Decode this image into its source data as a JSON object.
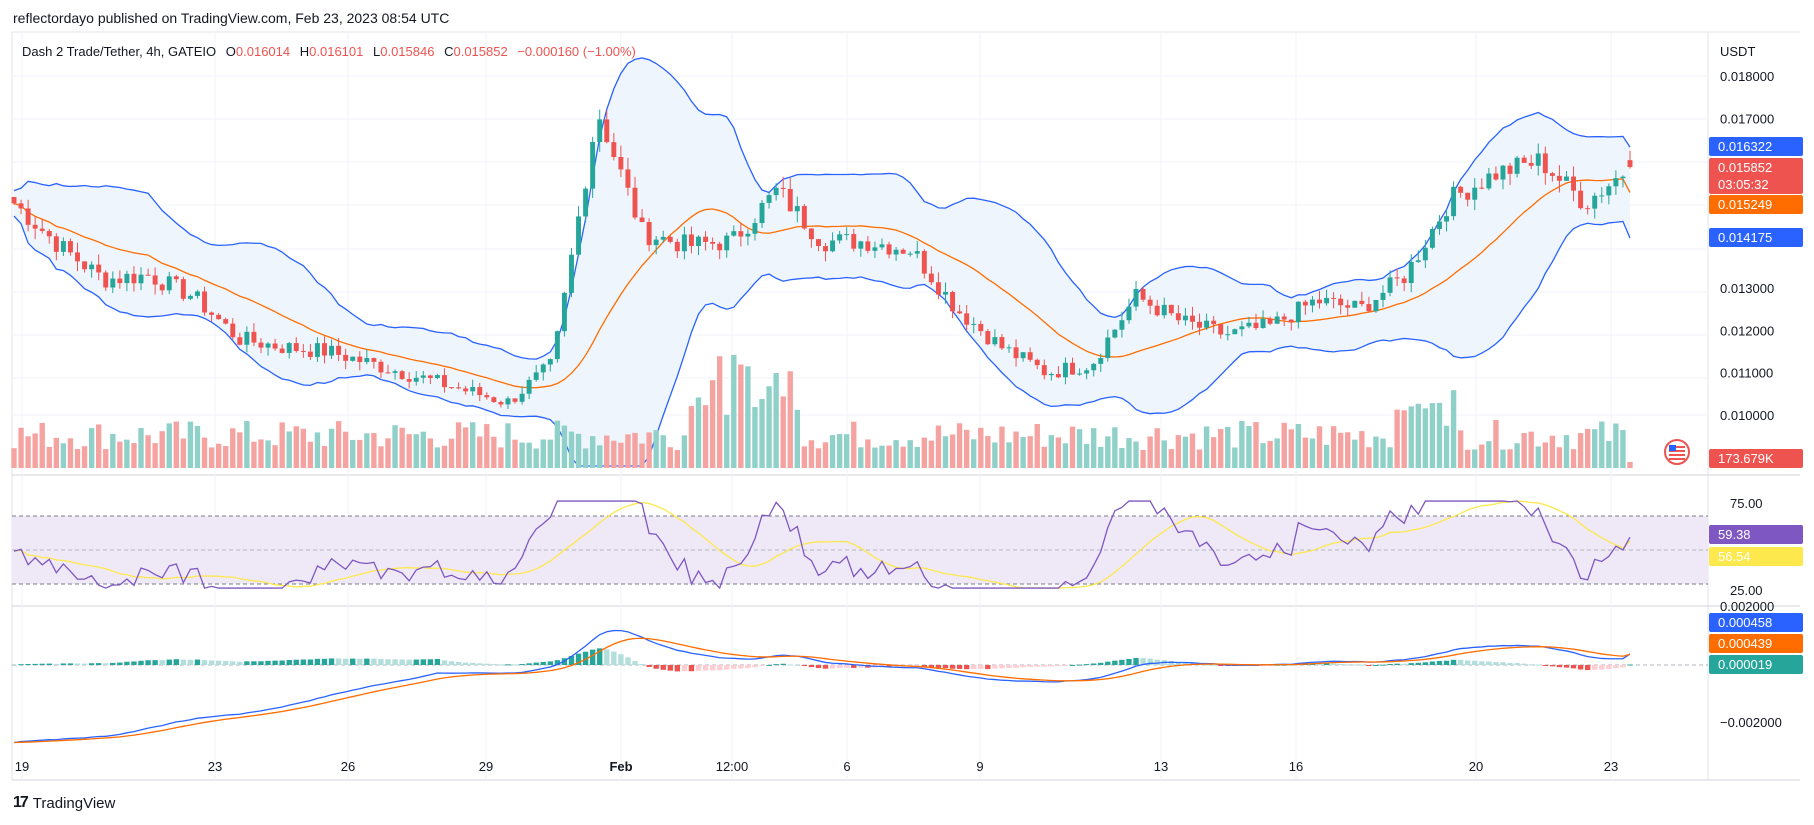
{
  "header": {
    "published": "reflectordayo published on TradingView.com, Feb 23, 2023 08:54 UTC"
  },
  "legend": {
    "symbol": "Dash 2 Trade/Tether, 4h, GATEIO",
    "open_label": "O",
    "open": "0.016014",
    "high_label": "H",
    "high": "0.016101",
    "low_label": "L",
    "low": "0.015846",
    "close_label": "C",
    "close": "0.015852",
    "change": "−0.000160 (−1.00%)"
  },
  "footer": {
    "brand": "TradingView",
    "logo_mark": "17"
  },
  "colors": {
    "up": "#26a69a",
    "down": "#ef5350",
    "upVol": "#8fd0c8",
    "downVol": "#f5a3a1",
    "bb_band": "#2962ff",
    "bb_basis": "#ff6d00",
    "bb_fill": "#eef5fc",
    "rsi": "#7e57c2",
    "rsi_ma": "#fde84d",
    "rsi_fill": "#efe9f7",
    "macd": "#2962ff",
    "signal": "#ff6d00"
  },
  "price_axis": {
    "unit": "USDT",
    "ticks": [
      "0.018000",
      "0.017000",
      "0.013000",
      "0.012000",
      "0.011000",
      "0.010000"
    ],
    "tags": [
      {
        "text": "0.016322",
        "bg": "#2962ff"
      },
      {
        "text": "0.015852",
        "bg": "#ef5350"
      },
      {
        "text": "03:05:32",
        "bg": "#ef5350"
      },
      {
        "text": "0.015249",
        "bg": "#ff6d00"
      },
      {
        "text": "0.014175",
        "bg": "#2962ff"
      },
      {
        "text": "173.679K",
        "bg": "#ef5350"
      }
    ]
  },
  "rsi_axis": {
    "ticks": [
      "75.00",
      "25.00"
    ],
    "tags": [
      {
        "text": "59.38",
        "bg": "#7e57c2"
      },
      {
        "text": "56.54",
        "bg": "#fde84d",
        "fg": "#131722"
      }
    ]
  },
  "macd_axis": {
    "ticks": [
      "0.002000",
      "−0.002000"
    ],
    "tags": [
      {
        "text": "0.000458",
        "bg": "#2962ff"
      },
      {
        "text": "0.000439",
        "bg": "#ff6d00"
      },
      {
        "text": "0.000019",
        "bg": "#26a69a"
      }
    ]
  },
  "time_axis": {
    "labels": [
      "19",
      "23",
      "26",
      "29",
      "Feb",
      "12:00",
      "6",
      "9",
      "13",
      "16",
      "20",
      "23"
    ]
  },
  "chart_data": {
    "type": "candlestick",
    "symbol": "Dash 2 Trade/Tether",
    "timeframe": "4h",
    "exchange": "GATEIO",
    "currency": "USDT",
    "last_close": 0.015852,
    "bb_upper": 0.016322,
    "bb_basis": 0.015249,
    "bb_lower": 0.014175,
    "volume_last": "173.679K",
    "rsi": 59.38,
    "rsi_ma": 56.54,
    "macd": 0.000458,
    "macd_signal": 0.000439,
    "macd_hist": 1.9e-05,
    "close_path": [
      {
        "t": "Jan 18",
        "close": 0.015
      },
      {
        "t": "Jan 19",
        "close": 0.014
      },
      {
        "t": "Jan 20",
        "close": 0.0132
      },
      {
        "t": "Jan 21",
        "close": 0.0133
      },
      {
        "t": "Jan 22",
        "close": 0.0128
      },
      {
        "t": "Jan 23",
        "close": 0.0118
      },
      {
        "t": "Jan 24",
        "close": 0.0116
      },
      {
        "t": "Jan 25",
        "close": 0.0115
      },
      {
        "t": "Jan 26",
        "close": 0.0112
      },
      {
        "t": "Jan 27",
        "close": 0.0109
      },
      {
        "t": "Jan 28",
        "close": 0.0106
      },
      {
        "t": "Jan 29",
        "close": 0.0103
      },
      {
        "t": "Jan 30",
        "close": 0.0112
      },
      {
        "t": "Jan 31",
        "close": 0.0172
      },
      {
        "t": "Feb 1",
        "close": 0.0143
      },
      {
        "t": "Feb 2",
        "close": 0.014
      },
      {
        "t": "Feb 3",
        "close": 0.0141
      },
      {
        "t": "Feb 4",
        "close": 0.0153
      },
      {
        "t": "Feb 5",
        "close": 0.0141
      },
      {
        "t": "Feb 6",
        "close": 0.0141
      },
      {
        "t": "Feb 7",
        "close": 0.0139
      },
      {
        "t": "Feb 8",
        "close": 0.0125
      },
      {
        "t": "Feb 9",
        "close": 0.0116
      },
      {
        "t": "Feb 10",
        "close": 0.011
      },
      {
        "t": "Feb 11",
        "close": 0.0112
      },
      {
        "t": "Feb 12",
        "close": 0.0128
      },
      {
        "t": "Feb 13",
        "close": 0.0122
      },
      {
        "t": "Feb 14",
        "close": 0.0119
      },
      {
        "t": "Feb 15",
        "close": 0.0121
      },
      {
        "t": "Feb 16",
        "close": 0.0127
      },
      {
        "t": "Feb 17",
        "close": 0.0125
      },
      {
        "t": "Feb 18",
        "close": 0.0133
      },
      {
        "t": "Feb 19",
        "close": 0.0151
      },
      {
        "t": "Feb 20",
        "close": 0.0157
      },
      {
        "t": "Feb 21",
        "close": 0.016
      },
      {
        "t": "Feb 22",
        "close": 0.015
      },
      {
        "t": "Feb 23",
        "close": 0.015852
      }
    ]
  }
}
